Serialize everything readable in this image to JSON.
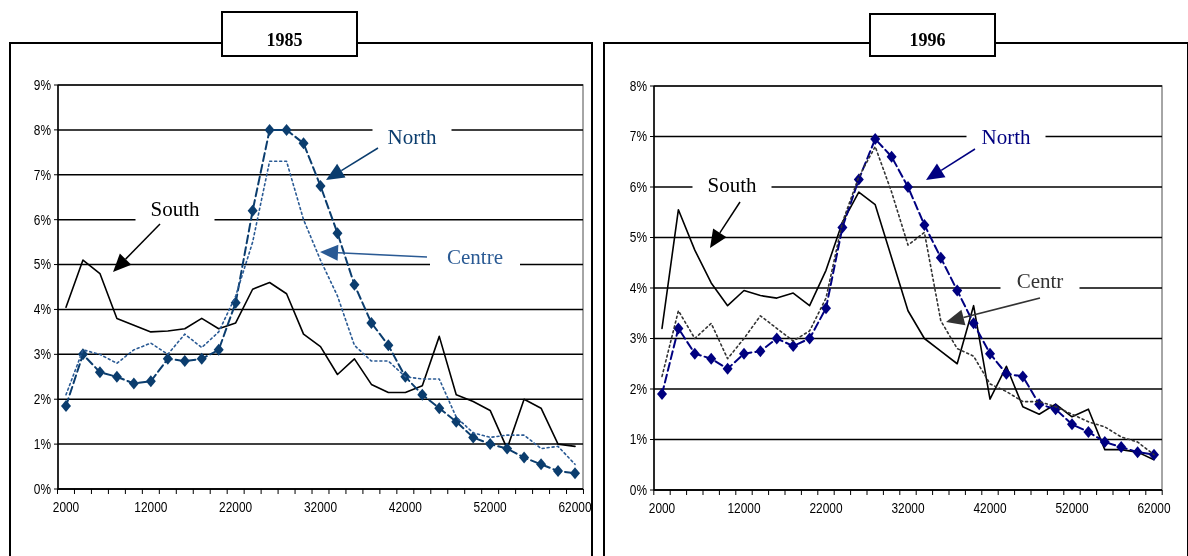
{
  "chart_data": [
    {
      "type": "line",
      "title": "1985",
      "categories": [
        "2000",
        null,
        null,
        null,
        null,
        "12000",
        null,
        null,
        null,
        null,
        "22000",
        null,
        null,
        null,
        null,
        "32000",
        null,
        null,
        null,
        null,
        "42000",
        null,
        null,
        null,
        null,
        "52000",
        null,
        null,
        null,
        null,
        "62000"
      ],
      "ylim": [
        0,
        9
      ],
      "yticks": [
        {
          "value": 0,
          "label": "0%"
        },
        {
          "value": 1,
          "label": "1%"
        },
        {
          "value": 2,
          "label": "2%"
        },
        {
          "value": 3,
          "label": "3%"
        },
        {
          "value": 4,
          "label": "4%"
        },
        {
          "value": 5,
          "label": "5%"
        },
        {
          "value": 6,
          "label": "6%"
        },
        {
          "value": 7,
          "label": "7%"
        },
        {
          "value": 8,
          "label": "8%"
        },
        {
          "value": 9,
          "label": "9%"
        }
      ],
      "grid": "y",
      "series": [
        {
          "name": "South",
          "color": "#000000",
          "line_style": "solid",
          "marker": "none",
          "values": [
            4.05,
            5.1,
            4.8,
            3.8,
            3.65,
            3.5,
            3.52,
            3.57,
            3.8,
            3.57,
            3.7,
            4.45,
            4.6,
            4.35,
            3.45,
            3.17,
            2.55,
            2.9,
            2.33,
            2.15,
            2.15,
            2.3,
            3.4,
            2.1,
            1.95,
            1.75,
            0.9,
            2.0,
            1.8,
            1.0,
            0.95
          ]
        },
        {
          "name": "North",
          "color": "#0b3d6e",
          "line_style": "dashed",
          "marker": "diamond",
          "values": [
            1.85,
            3.0,
            2.6,
            2.5,
            2.35,
            2.4,
            2.9,
            2.85,
            2.9,
            3.1,
            4.15,
            6.2,
            8.0,
            8.0,
            7.7,
            6.75,
            5.7,
            4.55,
            3.7,
            3.2,
            2.5,
            2.1,
            1.8,
            1.5,
            1.15,
            1.0,
            0.9,
            0.7,
            0.55,
            0.4,
            0.35
          ]
        },
        {
          "name": "Centre",
          "color": "#2a5a94",
          "line_style": "dotted",
          "marker": "none",
          "values": [
            2.1,
            3.1,
            3.0,
            2.8,
            3.1,
            3.25,
            3.0,
            3.45,
            3.15,
            3.5,
            4.3,
            5.5,
            7.3,
            7.3,
            6.0,
            5.1,
            4.3,
            3.2,
            2.85,
            2.85,
            2.5,
            2.45,
            2.45,
            1.6,
            1.25,
            1.15,
            1.2,
            1.2,
            0.9,
            0.95,
            0.55
          ]
        }
      ]
    },
    {
      "type": "line",
      "title": "1996",
      "categories": [
        "2000",
        null,
        null,
        null,
        null,
        "12000",
        null,
        null,
        null,
        null,
        "22000",
        null,
        null,
        null,
        null,
        "32000",
        null,
        null,
        null,
        null,
        "42000",
        null,
        null,
        null,
        null,
        "52000",
        null,
        null,
        null,
        null,
        "62000"
      ],
      "ylim": [
        0,
        8
      ],
      "yticks": [
        {
          "value": 0,
          "label": "0%"
        },
        {
          "value": 1,
          "label": "1%"
        },
        {
          "value": 2,
          "label": "2%"
        },
        {
          "value": 3,
          "label": "3%"
        },
        {
          "value": 4,
          "label": "4%"
        },
        {
          "value": 5,
          "label": "5%"
        },
        {
          "value": 6,
          "label": "6%"
        },
        {
          "value": 7,
          "label": "7%"
        },
        {
          "value": 8,
          "label": "8%"
        }
      ],
      "grid": "y",
      "series": [
        {
          "name": "South",
          "color": "#000000",
          "line_style": "solid",
          "marker": "none",
          "values": [
            3.2,
            5.55,
            4.75,
            4.1,
            3.65,
            3.95,
            3.85,
            3.8,
            3.9,
            3.65,
            4.35,
            5.3,
            5.9,
            5.65,
            4.6,
            3.55,
            3.0,
            2.75,
            2.5,
            3.65,
            1.8,
            2.45,
            1.65,
            1.5,
            1.7,
            1.45,
            1.6,
            0.8,
            0.8,
            0.75,
            0.6
          ]
        },
        {
          "name": "North",
          "color": "#000080",
          "line_style": "dashed",
          "marker": "diamond",
          "values": [
            1.9,
            3.2,
            2.7,
            2.6,
            2.4,
            2.7,
            2.75,
            3.0,
            2.85,
            3.0,
            3.6,
            5.2,
            6.15,
            6.95,
            6.6,
            6.0,
            5.25,
            4.6,
            3.95,
            3.3,
            2.7,
            2.3,
            2.25,
            1.7,
            1.6,
            1.3,
            1.15,
            0.95,
            0.85,
            0.75,
            0.7
          ]
        },
        {
          "name": "Centr",
          "color": "#333333",
          "line_style": "dotted",
          "marker": "none",
          "values": [
            2.25,
            3.55,
            3.0,
            3.3,
            2.6,
            3.0,
            3.45,
            3.2,
            2.95,
            3.15,
            3.8,
            5.3,
            6.2,
            6.8,
            5.9,
            4.85,
            5.1,
            3.35,
            2.8,
            2.65,
            2.1,
            1.95,
            1.75,
            1.75,
            1.65,
            1.5,
            1.35,
            1.25,
            1.05,
            0.95,
            0.7
          ]
        }
      ]
    }
  ]
}
